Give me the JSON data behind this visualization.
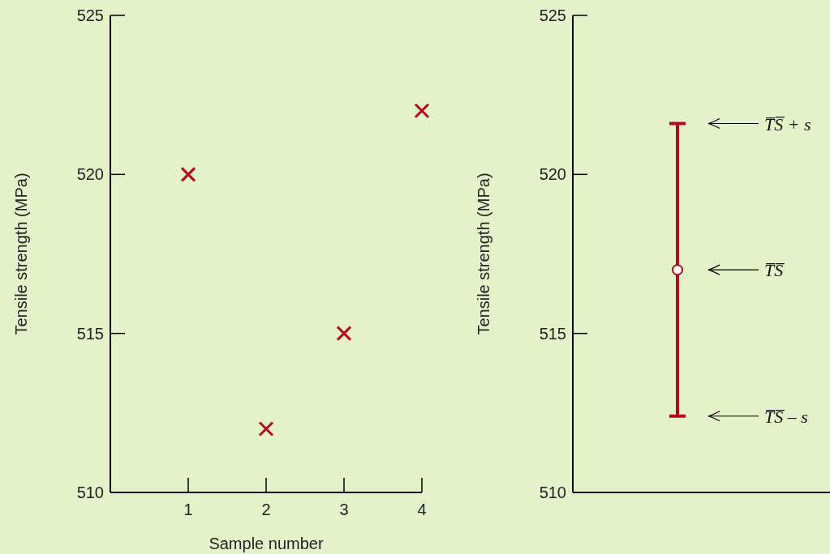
{
  "chart_data": [
    {
      "type": "scatter",
      "xlabel": "Sample number",
      "ylabel": "Tensile strength (MPa)",
      "x": [
        1,
        2,
        3,
        4
      ],
      "series": [
        {
          "color": "#b5091b",
          "values": [
            520,
            512,
            515,
            522
          ]
        }
      ],
      "xlim": [
        0,
        4
      ],
      "xticks": [
        1,
        2,
        3,
        4
      ],
      "ylim": [
        510,
        525
      ],
      "yticks": [
        510,
        515,
        520,
        525
      ],
      "marker": "cross"
    },
    {
      "type": "scatter",
      "ylabel": "Tensile strength (MPa)",
      "categories": [
        null
      ],
      "series": [
        {
          "color": "#b5091b",
          "values": [
            517
          ],
          "errors": [
            4.6
          ]
        }
      ],
      "ylim": [
        510,
        525
      ],
      "yticks": [
        510,
        515,
        520,
        525
      ],
      "marker": "circle",
      "tick_labels": "y",
      "annotations": [
        "T̅S̅ + s",
        "T̅S̅",
        "T̅S̅ – s"
      ]
    }
  ]
}
